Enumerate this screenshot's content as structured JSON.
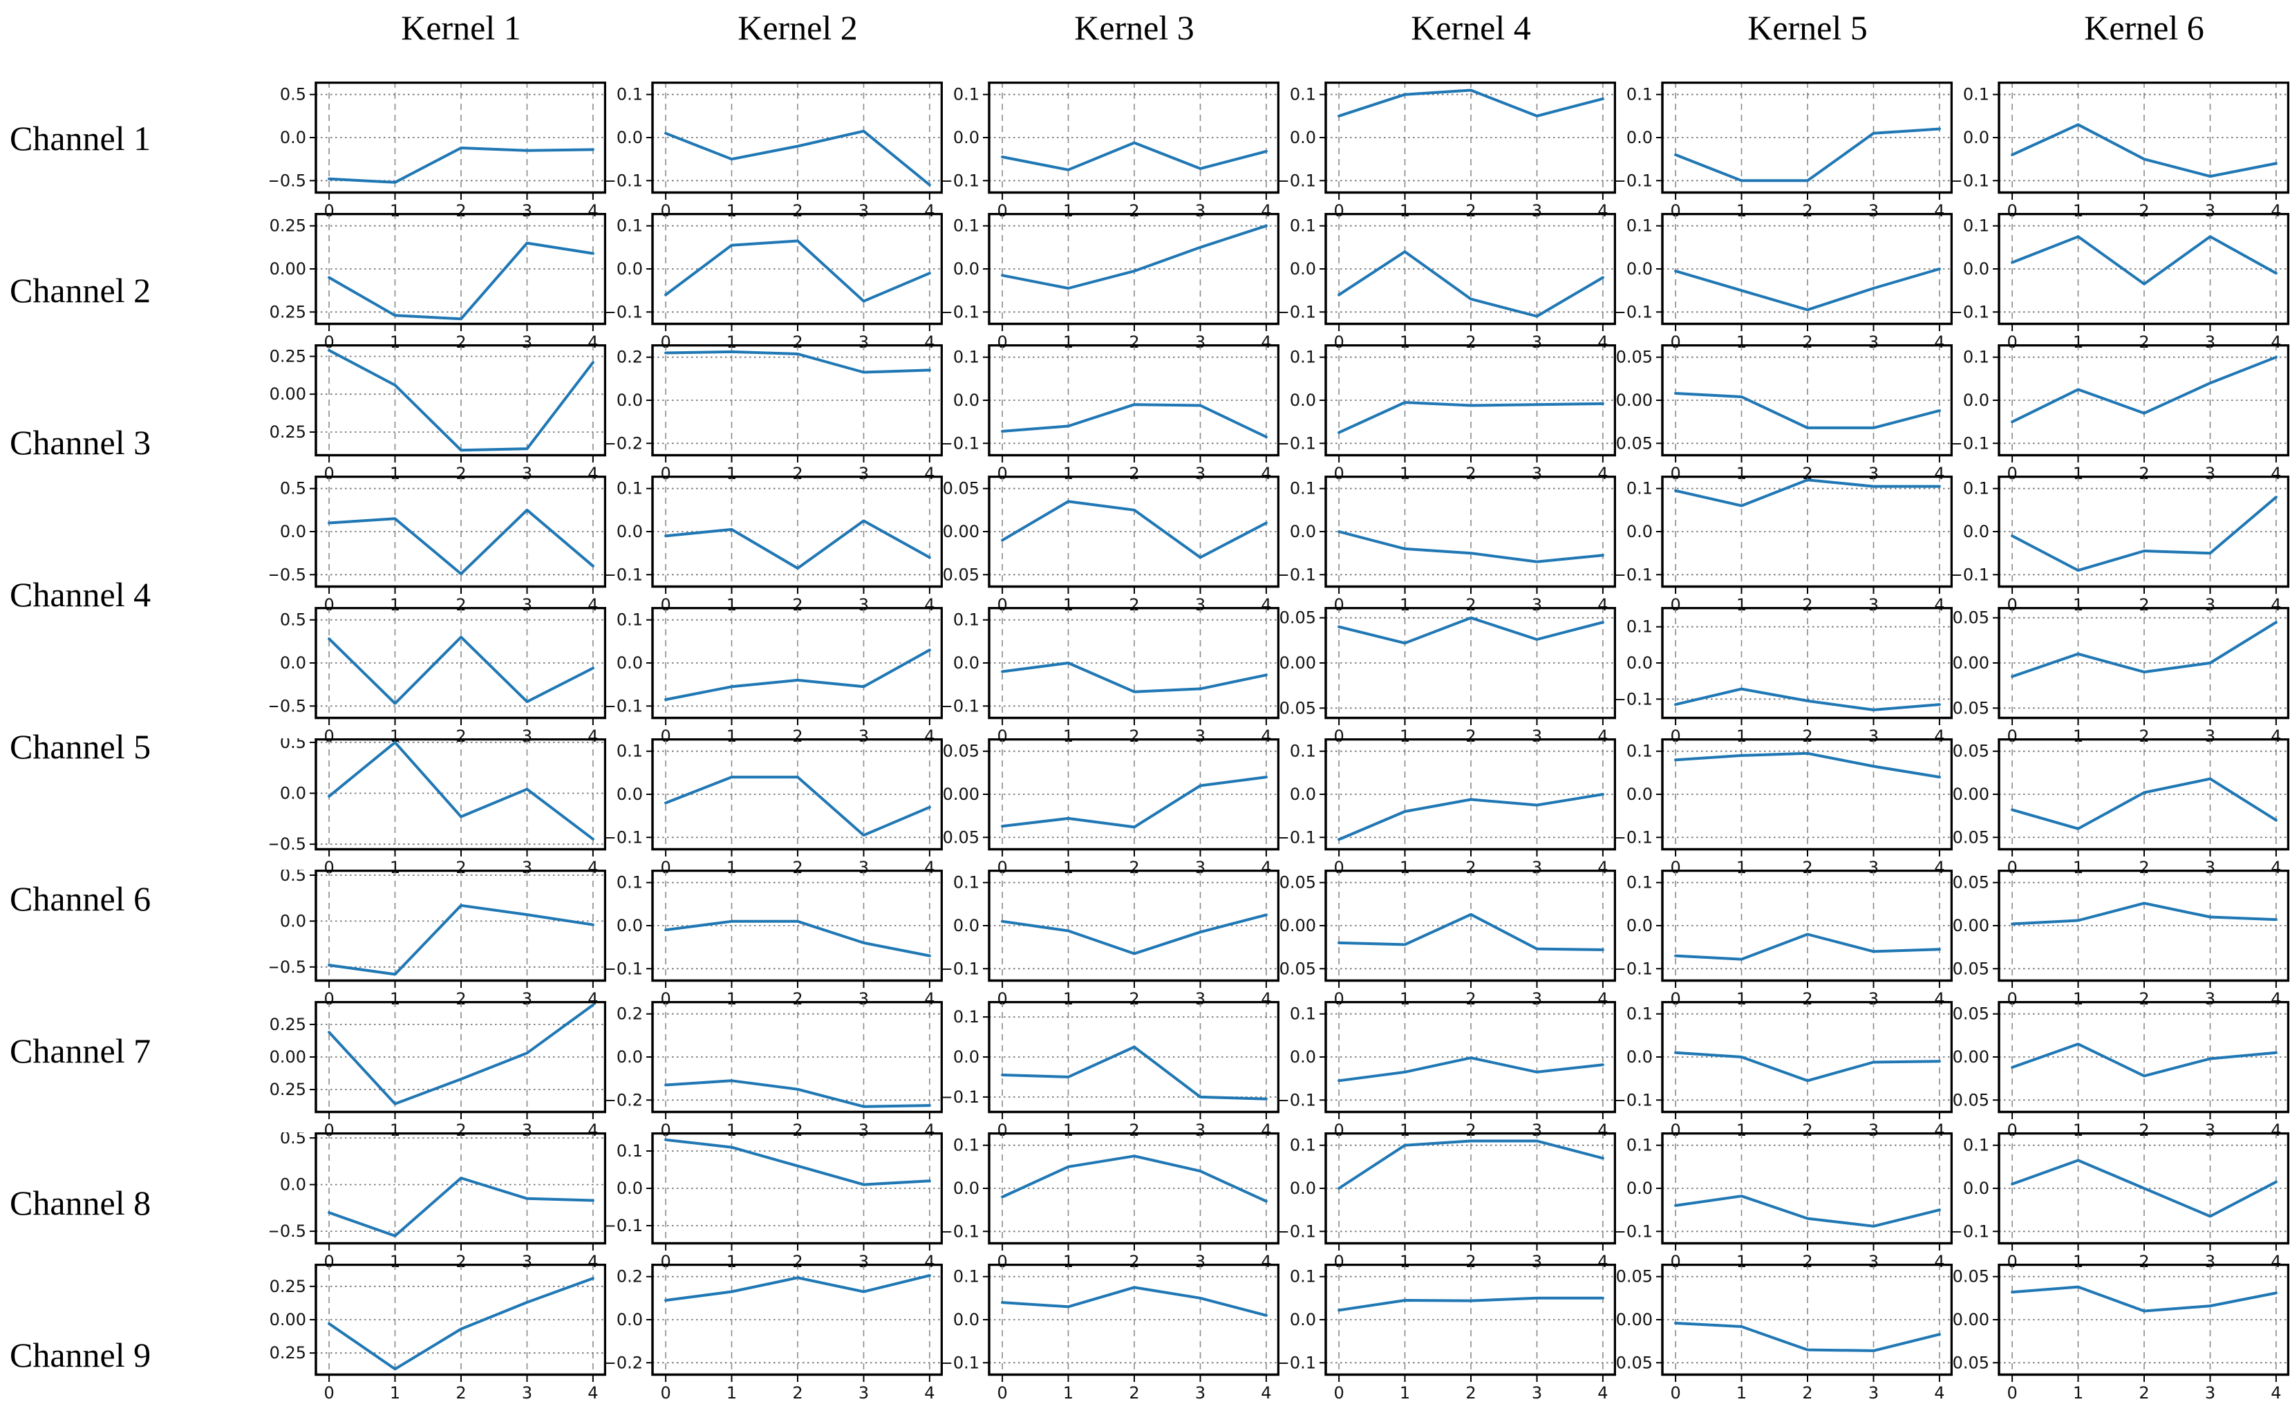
{
  "figure": {
    "background": "#ffffff",
    "kind": "grid of convolution kernel weight line plots"
  },
  "chart_data": {
    "type": "line",
    "title": "",
    "xlabel": "",
    "ylabel": "",
    "x": [
      0,
      1,
      2,
      3,
      4
    ],
    "xtick_labels": [
      "0",
      "1",
      "2",
      "3",
      "4"
    ],
    "xlim": [
      -0.2,
      4.2
    ],
    "line_color": "#1f77b4",
    "grid": "dashed gray, vertical at each x tick, horizontal at each y tick",
    "legend": "none",
    "columns": [
      "Kernel 1",
      "Kernel 2",
      "Kernel 3",
      "Kernel 4",
      "Kernel 5",
      "Kernel 6"
    ],
    "channel_labels": [
      "Channel 1",
      "Channel 2",
      "Channel 3",
      "Channel 4",
      "Channel 5",
      "Channel 6",
      "Channel 7",
      "Channel 8",
      "Channel 9"
    ],
    "ytick_rule": "each subplot has y ticks/gridlines at +t, 0, -t; labels use 2 decimals when t is 0.25 or 0.05, else 1 decimal; default ylim is [-1.3t, +1.3t] unless lim given",
    "layout_note": "10 subplot rows share the 6 kernel columns; the 9 channel labels are evenly spaced down the left side",
    "cells": [
      [
        {
          "t": 0.5,
          "v": [
            -0.48,
            -0.52,
            -0.12,
            -0.15,
            -0.14
          ]
        },
        {
          "t": 0.1,
          "v": [
            0.01,
            -0.05,
            -0.02,
            0.015,
            -0.11
          ]
        },
        {
          "t": 0.1,
          "v": [
            -0.045,
            -0.075,
            -0.012,
            -0.072,
            -0.032
          ]
        },
        {
          "t": 0.1,
          "v": [
            0.05,
            0.1,
            0.11,
            0.05,
            0.09
          ]
        },
        {
          "t": 0.1,
          "v": [
            -0.04,
            -0.1,
            -0.1,
            0.01,
            0.02
          ]
        },
        {
          "t": 0.1,
          "v": [
            -0.04,
            0.03,
            -0.05,
            -0.09,
            -0.06
          ]
        }
      ],
      [
        {
          "t": 0.25,
          "v": [
            -0.05,
            -0.27,
            -0.29,
            0.15,
            0.09
          ]
        },
        {
          "t": 0.1,
          "v": [
            -0.06,
            0.055,
            0.065,
            -0.075,
            -0.01
          ]
        },
        {
          "t": 0.1,
          "v": [
            -0.015,
            -0.045,
            -0.005,
            0.05,
            0.1
          ]
        },
        {
          "t": 0.1,
          "v": [
            -0.06,
            0.04,
            -0.07,
            -0.11,
            -0.02
          ]
        },
        {
          "t": 0.1,
          "v": [
            -0.005,
            -0.05,
            -0.095,
            -0.045,
            0.0
          ]
        },
        {
          "t": 0.1,
          "v": [
            0.015,
            0.075,
            -0.035,
            0.075,
            -0.01
          ]
        }
      ],
      [
        {
          "t": 0.25,
          "v": [
            0.29,
            0.06,
            -0.37,
            -0.36,
            0.21
          ],
          "lim": [
            -0.41,
            0.33
          ]
        },
        {
          "t": 0.2,
          "v": [
            0.22,
            0.225,
            0.215,
            0.13,
            0.14
          ]
        },
        {
          "t": 0.1,
          "v": [
            -0.072,
            -0.06,
            -0.01,
            -0.012,
            -0.085
          ]
        },
        {
          "t": 0.1,
          "v": [
            -0.075,
            -0.005,
            -0.012,
            -0.01,
            -0.008
          ]
        },
        {
          "t": 0.05,
          "v": [
            0.008,
            0.004,
            -0.032,
            -0.032,
            -0.012
          ]
        },
        {
          "t": 0.1,
          "v": [
            -0.05,
            0.025,
            -0.03,
            0.04,
            0.1
          ]
        }
      ],
      [
        {
          "t": 0.5,
          "v": [
            0.1,
            0.15,
            -0.49,
            0.25,
            -0.4
          ]
        },
        {
          "t": 0.1,
          "v": [
            -0.01,
            0.005,
            -0.085,
            0.025,
            -0.06
          ]
        },
        {
          "t": 0.05,
          "v": [
            -0.01,
            0.035,
            0.025,
            -0.03,
            0.01
          ]
        },
        {
          "t": 0.1,
          "v": [
            0.0,
            -0.04,
            -0.05,
            -0.07,
            -0.055
          ]
        },
        {
          "t": 0.1,
          "v": [
            0.095,
            0.06,
            0.12,
            0.105,
            0.105
          ]
        },
        {
          "t": 0.1,
          "v": [
            -0.01,
            -0.09,
            -0.045,
            -0.05,
            0.08
          ]
        }
      ],
      [
        {
          "t": 0.5,
          "v": [
            0.28,
            -0.47,
            0.3,
            -0.45,
            -0.06
          ]
        },
        {
          "t": 0.1,
          "v": [
            -0.085,
            -0.055,
            -0.04,
            -0.055,
            0.03
          ]
        },
        {
          "t": 0.1,
          "v": [
            -0.02,
            0.0,
            -0.067,
            -0.06,
            -0.028
          ]
        },
        {
          "t": 0.05,
          "v": [
            0.04,
            0.022,
            0.05,
            0.026,
            0.045
          ],
          "lim": [
            -0.062,
            0.062
          ]
        },
        {
          "t": 0.1,
          "v": [
            -0.115,
            -0.072,
            -0.105,
            -0.13,
            -0.115
          ],
          "lim": [
            -0.155,
            0.155
          ]
        },
        {
          "t": 0.05,
          "v": [
            -0.015,
            0.01,
            -0.01,
            0.0,
            0.045
          ],
          "lim": [
            -0.062,
            0.062
          ]
        }
      ],
      [
        {
          "t": 0.5,
          "v": [
            -0.03,
            0.5,
            -0.23,
            0.04,
            -0.45
          ],
          "lim": [
            -0.56,
            0.54
          ]
        },
        {
          "t": 0.1,
          "v": [
            -0.02,
            0.04,
            0.04,
            -0.095,
            -0.03
          ]
        },
        {
          "t": 0.05,
          "v": [
            -0.037,
            -0.028,
            -0.038,
            0.01,
            0.02
          ]
        },
        {
          "t": 0.1,
          "v": [
            -0.105,
            -0.04,
            -0.012,
            -0.025,
            0.0
          ]
        },
        {
          "t": 0.1,
          "v": [
            0.08,
            0.09,
            0.095,
            0.065,
            0.04
          ]
        },
        {
          "t": 0.05,
          "v": [
            -0.018,
            -0.04,
            0.002,
            0.018,
            -0.03
          ]
        }
      ],
      [
        {
          "t": 0.5,
          "v": [
            -0.48,
            -0.58,
            0.17,
            0.07,
            -0.04
          ],
          "lim": [
            -0.66,
            0.56
          ]
        },
        {
          "t": 0.1,
          "v": [
            -0.01,
            0.01,
            0.01,
            -0.04,
            -0.07
          ]
        },
        {
          "t": 0.1,
          "v": [
            0.01,
            -0.012,
            -0.065,
            -0.015,
            0.025
          ]
        },
        {
          "t": 0.05,
          "v": [
            -0.02,
            -0.022,
            0.013,
            -0.027,
            -0.028
          ]
        },
        {
          "t": 0.1,
          "v": [
            -0.07,
            -0.078,
            -0.02,
            -0.06,
            -0.055
          ]
        },
        {
          "t": 0.05,
          "v": [
            0.002,
            0.006,
            0.026,
            0.01,
            0.007
          ]
        }
      ],
      [
        {
          "t": 0.25,
          "v": [
            0.19,
            -0.36,
            -0.17,
            0.03,
            0.4
          ],
          "lim": [
            -0.43,
            0.43
          ]
        },
        {
          "t": 0.2,
          "v": [
            -0.13,
            -0.11,
            -0.15,
            -0.23,
            -0.225
          ]
        },
        {
          "t": 0.1,
          "v": [
            -0.045,
            -0.05,
            0.025,
            -0.1,
            -0.105
          ],
          "lim": [
            -0.14,
            0.14
          ]
        },
        {
          "t": 0.1,
          "v": [
            -0.055,
            -0.035,
            -0.002,
            -0.035,
            -0.018
          ]
        },
        {
          "t": 0.1,
          "v": [
            0.01,
            0.0,
            -0.055,
            -0.012,
            -0.01
          ]
        },
        {
          "t": 0.05,
          "v": [
            -0.012,
            0.015,
            -0.022,
            -0.002,
            0.005
          ]
        }
      ],
      [
        {
          "t": 0.5,
          "v": [
            -0.3,
            -0.55,
            0.07,
            -0.15,
            -0.17
          ],
          "lim": [
            -0.64,
            0.56
          ]
        },
        {
          "t": 0.1,
          "v": [
            0.13,
            0.11,
            0.06,
            0.01,
            0.02
          ],
          "lim": [
            -0.15,
            0.15
          ]
        },
        {
          "t": 0.1,
          "v": [
            -0.02,
            0.05,
            0.075,
            0.04,
            -0.03
          ]
        },
        {
          "t": 0.1,
          "v": [
            0.0,
            0.1,
            0.11,
            0.11,
            0.07
          ]
        },
        {
          "t": 0.1,
          "v": [
            -0.04,
            -0.018,
            -0.07,
            -0.088,
            -0.05
          ]
        },
        {
          "t": 0.1,
          "v": [
            0.01,
            0.065,
            0.0,
            -0.065,
            0.015
          ]
        }
      ],
      [
        {
          "t": 0.25,
          "v": [
            -0.03,
            -0.37,
            -0.07,
            0.13,
            0.31
          ],
          "lim": [
            -0.42,
            0.42
          ]
        },
        {
          "t": 0.2,
          "v": [
            0.09,
            0.13,
            0.195,
            0.13,
            0.205
          ]
        },
        {
          "t": 0.1,
          "v": [
            0.04,
            0.03,
            0.075,
            0.05,
            0.01
          ]
        },
        {
          "t": 0.1,
          "v": [
            0.022,
            0.045,
            0.044,
            0.05,
            0.05
          ]
        },
        {
          "t": 0.05,
          "v": [
            -0.004,
            -0.008,
            -0.035,
            -0.036,
            -0.017
          ]
        },
        {
          "t": 0.05,
          "v": [
            0.032,
            0.038,
            0.01,
            0.016,
            0.031
          ]
        }
      ]
    ]
  }
}
